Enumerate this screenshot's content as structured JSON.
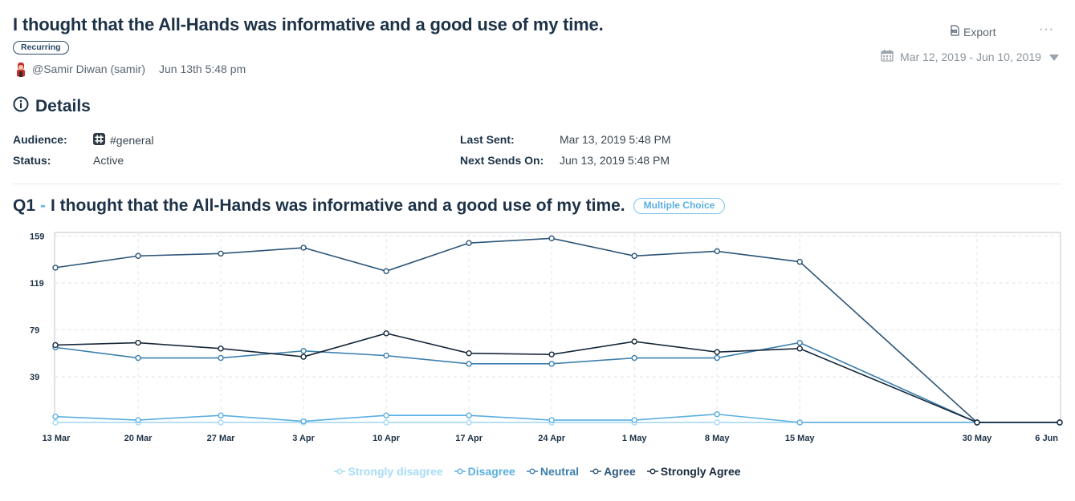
{
  "header": {
    "title": "I thought that the All-Hands was informative and a good use of my time.",
    "recurring_label": "Recurring",
    "user": "@Samir Diwan (samir)",
    "timestamp": "Jun 13th 5:48 pm",
    "export_label": "Export",
    "more_label": "···",
    "date_range": "Mar 12, 2019 - Jun 10, 2019"
  },
  "details": {
    "heading": "Details",
    "audience_label": "Audience:",
    "audience_value": "#general",
    "status_label": "Status:",
    "status_value": "Active",
    "last_sent_label": "Last Sent:",
    "last_sent_value": "Mar 13, 2019 5:48 PM",
    "next_sends_label": "Next Sends On:",
    "next_sends_value": "Jun 13, 2019 5:48 PM"
  },
  "question": {
    "number": "Q1",
    "dash": "-",
    "text": "I thought that the All-Hands was informative and a good use of my time.",
    "type_badge": "Multiple Choice"
  },
  "colors": {
    "strongly_disagree": "#a7dcf5",
    "disagree": "#5aafe0",
    "neutral": "#3d7fae",
    "agree": "#2c5578",
    "strongly_agree": "#17283a"
  },
  "chart_data": {
    "type": "line",
    "categories": [
      "13 Mar",
      "20 Mar",
      "27 Mar",
      "3 Apr",
      "10 Apr",
      "17 Apr",
      "24 Apr",
      "1 May",
      "8 May",
      "15 May",
      "30 May",
      "6 Jun"
    ],
    "x_days": [
      0,
      7,
      14,
      21,
      28,
      35,
      42,
      49,
      56,
      63,
      78,
      85
    ],
    "y_ticks": [
      39,
      79,
      119,
      159
    ],
    "ylim": [
      0,
      162
    ],
    "grid": true,
    "legend_position": "bottom",
    "series": [
      {
        "name": "Strongly disagree",
        "color_key": "strongly_disagree",
        "values": [
          0,
          0,
          0,
          0,
          0,
          0,
          0,
          0,
          0,
          0,
          0,
          0
        ]
      },
      {
        "name": "Disagree",
        "color_key": "disagree",
        "values": [
          5,
          2,
          6,
          1,
          6,
          6,
          2,
          2,
          7,
          0,
          0,
          0
        ]
      },
      {
        "name": "Neutral",
        "color_key": "neutral",
        "values": [
          64,
          55,
          55,
          61,
          57,
          50,
          50,
          55,
          55,
          68,
          0,
          0
        ]
      },
      {
        "name": "Agree",
        "color_key": "agree",
        "values": [
          132,
          142,
          144,
          149,
          129,
          153,
          157,
          142,
          146,
          137,
          0,
          0
        ]
      },
      {
        "name": "Strongly Agree",
        "color_key": "strongly_agree",
        "values": [
          66,
          68,
          63,
          56,
          76,
          59,
          58,
          69,
          60,
          63,
          0,
          0
        ]
      }
    ]
  }
}
